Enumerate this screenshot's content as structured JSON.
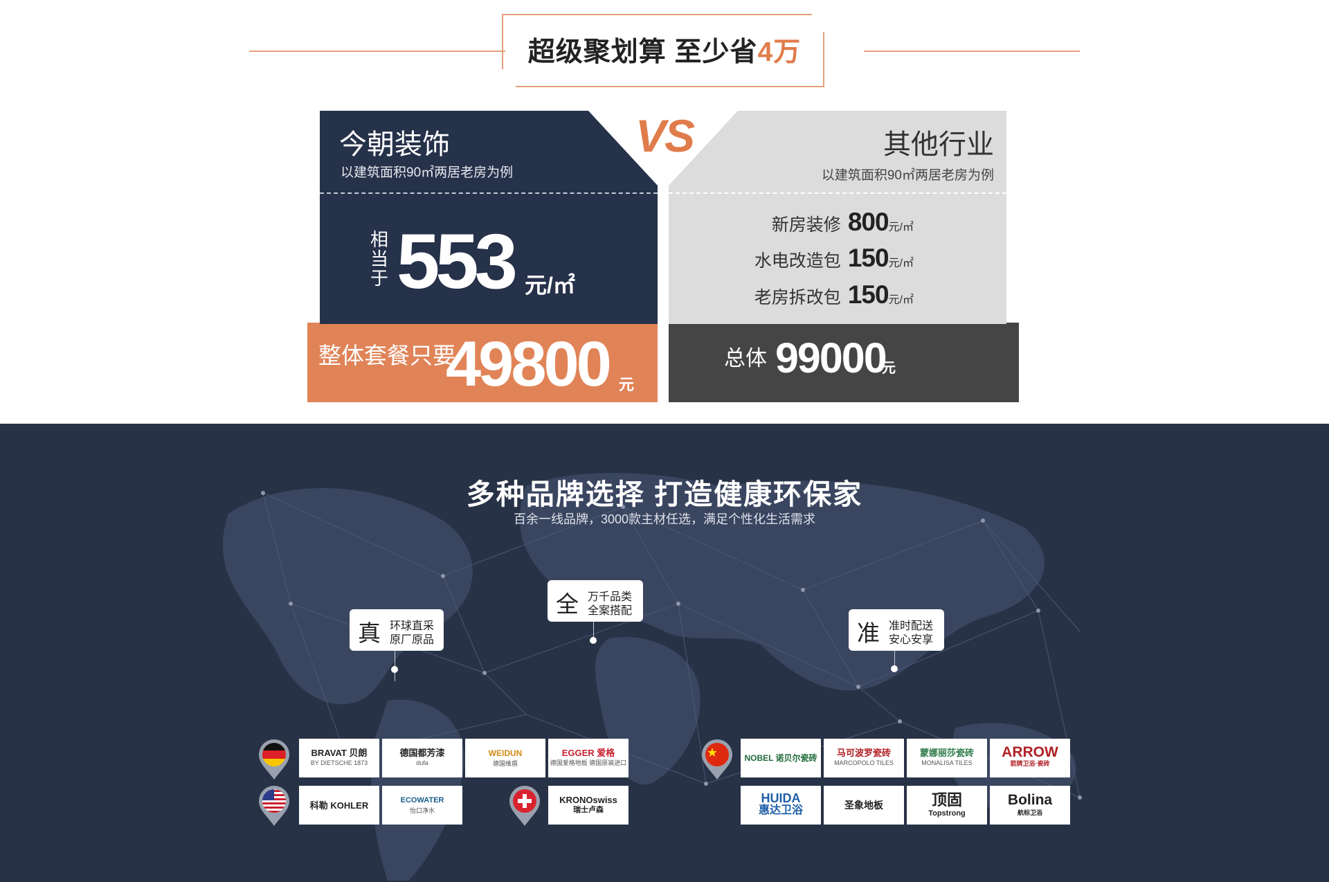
{
  "banner": {
    "title_main": "超级聚划算 至少省",
    "title_highlight": "4万"
  },
  "compare": {
    "vs": "VS",
    "left": {
      "brand": "今朝装饰",
      "note": "以建筑面积90㎡两居老房为例",
      "equiv_label": [
        "相",
        "当",
        "于"
      ],
      "price": "553",
      "unit": "元/㎡",
      "package_label": "整体套餐只要",
      "package_price": "49800",
      "package_unit": "元"
    },
    "right": {
      "brand": "其他行业",
      "note": "以建筑面积90㎡两居老房为例",
      "rows": [
        {
          "label": "新房装修",
          "value": "800",
          "unit": "元/㎡"
        },
        {
          "label": "水电改造包",
          "value": "150",
          "unit": "元/㎡"
        },
        {
          "label": "老房拆改包",
          "value": "150",
          "unit": "元/㎡"
        }
      ],
      "total_label": "总体",
      "total_value": "99000",
      "total_unit": "元"
    }
  },
  "brands_section": {
    "title": "多种品牌选择 打造健康环保家",
    "subtitle": "百余一线品牌，3000款主材任选，满足个性化生活需求",
    "bubbles": [
      {
        "big": "真",
        "line1": "环球直采",
        "line2": "原厂原品"
      },
      {
        "big": "全",
        "line1": "万千品类",
        "line2": "全案搭配"
      },
      {
        "big": "准",
        "line1": "准时配送",
        "line2": "安心安享"
      }
    ],
    "flags": [
      "germany-flag",
      "usa-flag",
      "switzerland-flag",
      "china-flag"
    ],
    "logos": {
      "germany": [
        {
          "name": "BRAVAT 贝朗",
          "sub": "BY DIETSCHE 1873"
        },
        {
          "name": "德国都芳漆",
          "sub": "dufa"
        },
        {
          "name": "WEIDUN",
          "sub": "德国维盾"
        },
        {
          "name": "EGGER 爱格",
          "sub": "德国爱格地板 德国原装进口"
        }
      ],
      "usa": [
        {
          "name": "科勒 KOHLER",
          "sub": ""
        },
        {
          "name": "ECOWATER",
          "sub": "怡口净水"
        }
      ],
      "switzerland": [
        {
          "name": "KRONOswiss",
          "sub": "瑞士卢森"
        }
      ],
      "china": [
        {
          "name": "NOBEL 诺贝尔瓷砖",
          "sub": ""
        },
        {
          "name": "马可波罗瓷砖",
          "sub": "MARCOPOLO TILES"
        },
        {
          "name": "蒙娜丽莎瓷砖",
          "sub": "MONALISA TILES"
        },
        {
          "name": "ARROW",
          "sub": "箭牌卫浴·瓷砖"
        },
        {
          "name": "HUIDA",
          "sub": "惠达卫浴"
        },
        {
          "name": "圣象地板",
          "sub": ""
        },
        {
          "name": "顶固",
          "sub": "Topstrong"
        },
        {
          "name": "Bolina",
          "sub": "航标卫浴"
        }
      ]
    }
  },
  "colors": {
    "accent": "#e07c4b",
    "navy": "#26314a",
    "dark_bg": "#283246",
    "gray": "#dcdcdc",
    "charcoal": "#454545"
  }
}
